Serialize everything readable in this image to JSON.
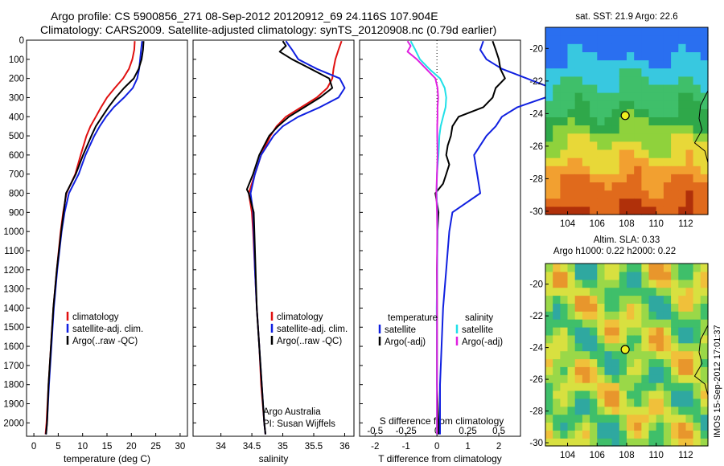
{
  "header": {
    "line1": "Argo profile: CS 5900856_271 08-Sep-2012 20120912_69 24.116S 107.904E",
    "line2": "Climatology: CARS2009. Satellite-adjusted climatology: synTS_20120908.nc (0.79d earlier)"
  },
  "footer_stamp": "IMOS 15-Sep-2012 17:01:37",
  "colors": {
    "climatology": "#e01010",
    "satellite": "#1020e0",
    "argo": "#000000",
    "sat_diff": "#20e0e8",
    "argo_diff": "#e020e0"
  },
  "chart_data": [
    {
      "type": "line",
      "xlabel": "temperature (deg C)",
      "ylabel": "",
      "xlim": [
        -1.5,
        31.5
      ],
      "ylim": [
        0,
        2070
      ],
      "xticks": [
        0,
        5,
        10,
        15,
        20,
        25,
        30
      ],
      "yticks": [
        0,
        100,
        200,
        300,
        400,
        500,
        600,
        700,
        800,
        900,
        1000,
        1100,
        1200,
        1300,
        1400,
        1500,
        1600,
        1700,
        1800,
        1900,
        2000
      ],
      "legend": [
        "climatology",
        "satellite-adj. clim.",
        "Argo(..raw -QC)"
      ],
      "legend_position": "lower-right",
      "series": [
        {
          "name": "climatology",
          "color": "#e01010",
          "depth": [
            5,
            50,
            100,
            150,
            200,
            250,
            300,
            350,
            400,
            450,
            500,
            600,
            700,
            800,
            900,
            1000,
            1200,
            1400,
            1600,
            1800,
            2000,
            2060
          ],
          "values": [
            20.7,
            20.6,
            20.2,
            19.5,
            18.3,
            16.6,
            15.0,
            13.8,
            12.7,
            11.6,
            10.8,
            9.6,
            8.5,
            6.7,
            6.0,
            5.5,
            4.7,
            4.0,
            3.5,
            3.0,
            2.6,
            2.4
          ]
        },
        {
          "name": "satellite-adj. clim.",
          "color": "#1020e0",
          "depth": [
            5,
            50,
            100,
            150,
            200,
            250,
            300,
            350,
            400,
            450,
            500,
            600,
            700,
            800,
            900,
            1000,
            1200,
            1400,
            1600,
            1800,
            2000,
            2060
          ],
          "values": [
            22.2,
            22.0,
            21.8,
            21.6,
            21.2,
            20.3,
            18.5,
            16.4,
            14.8,
            13.5,
            12.4,
            10.6,
            9.2,
            7.2,
            6.3,
            5.7,
            4.8,
            4.1,
            3.6,
            3.1,
            2.7,
            2.5
          ]
        },
        {
          "name": "Argo(..raw -QC)",
          "color": "#000000",
          "depth": [
            5,
            50,
            100,
            150,
            200,
            250,
            300,
            350,
            400,
            450,
            500,
            600,
            700,
            780,
            800,
            900,
            1000,
            1200,
            1400,
            1600,
            1800,
            2000,
            2060
          ],
          "values": [
            22.5,
            22.4,
            22.1,
            21.5,
            20.5,
            18.5,
            16.8,
            15.3,
            14.0,
            12.7,
            11.8,
            10.1,
            8.6,
            7.0,
            6.6,
            6.1,
            5.6,
            4.7,
            4.0,
            3.5,
            3.0,
            2.7,
            2.5
          ]
        }
      ]
    },
    {
      "type": "line",
      "xlabel": "salinity",
      "xlim": [
        33.55,
        36.15
      ],
      "ylim": [
        0,
        2070
      ],
      "xticks": [
        34,
        34.5,
        35,
        35.5,
        36
      ],
      "legend": [
        "climatology",
        "satellite-adj. clim.",
        "Argo(..raw -QC)"
      ],
      "legend_position": "lower-right",
      "annotation": [
        "Argo Australia",
        "PI: Susan Wijffels"
      ],
      "series": [
        {
          "name": "climatology",
          "color": "#e01010",
          "depth": [
            5,
            50,
            100,
            150,
            200,
            250,
            300,
            350,
            400,
            450,
            500,
            600,
            700,
            800,
            900,
            1000,
            1200,
            1400,
            1600,
            1800,
            2000,
            2060
          ],
          "values": [
            35.95,
            35.9,
            35.85,
            35.82,
            35.8,
            35.72,
            35.55,
            35.3,
            35.05,
            34.9,
            34.8,
            34.65,
            34.55,
            34.45,
            34.5,
            34.52,
            34.55,
            34.58,
            34.62,
            34.65,
            34.7,
            34.72
          ]
        },
        {
          "name": "satellite-adj. clim.",
          "color": "#1020e0",
          "depth": [
            5,
            50,
            100,
            150,
            200,
            250,
            300,
            350,
            400,
            450,
            500,
            600,
            700,
            800,
            900,
            1000,
            1200,
            1400,
            1600,
            1800,
            2000,
            2060
          ],
          "values": [
            35.05,
            35.15,
            35.25,
            35.55,
            35.92,
            36.0,
            35.9,
            35.6,
            35.25,
            35.0,
            34.85,
            34.65,
            34.55,
            34.48,
            34.52,
            34.53,
            34.55,
            34.58,
            34.62,
            34.66,
            34.7,
            34.72
          ]
        },
        {
          "name": "Argo(..raw -QC)",
          "color": "#000000",
          "depth": [
            5,
            30,
            60,
            100,
            150,
            200,
            250,
            300,
            350,
            400,
            450,
            500,
            600,
            700,
            780,
            800,
            900,
            1000,
            1200,
            1400,
            1600,
            1800,
            2000,
            2060
          ],
          "values": [
            35.0,
            35.05,
            34.95,
            35.15,
            35.45,
            35.75,
            35.8,
            35.6,
            35.35,
            35.1,
            34.92,
            34.78,
            34.62,
            34.52,
            34.42,
            34.45,
            34.53,
            34.54,
            34.56,
            34.58,
            34.62,
            34.66,
            34.7,
            34.72
          ]
        }
      ]
    },
    {
      "type": "line",
      "xlabel": "T difference from climatology",
      "x2label": "S difference from climatology",
      "xlim": [
        -2.5,
        2.7
      ],
      "ylim": [
        0,
        2070
      ],
      "xticks": [
        -2,
        -1,
        0,
        1,
        2
      ],
      "x2ticks": [
        -0.5,
        -0.25,
        0,
        0.25,
        0.5
      ],
      "x2tick_labels": [
        "-0.5",
        "-0.25",
        "0",
        "0.25",
        "0.5"
      ],
      "legend_groups": [
        {
          "title": "temperature",
          "items": [
            "satellite",
            "Argo(-adj)"
          ]
        },
        {
          "title": "salinity",
          "items": [
            "satellite",
            "Argo(-adj)"
          ]
        }
      ],
      "series": [
        {
          "name": "temperature satellite",
          "color": "#1020e0",
          "depth": [
            5,
            50,
            100,
            150,
            200,
            250,
            300,
            350,
            400,
            450,
            500,
            600,
            700,
            800,
            900,
            1000,
            1200,
            1400,
            1600,
            1800,
            2000,
            2060
          ],
          "values": [
            1.5,
            1.4,
            1.6,
            2.1,
            2.9,
            3.7,
            3.5,
            2.6,
            2.1,
            1.9,
            1.6,
            1.2,
            1.3,
            1.4,
            0.5,
            0.4,
            0.3,
            0.2,
            0.15,
            0.1,
            0.1,
            0.1
          ]
        },
        {
          "name": "temperature Argo(-adj)",
          "color": "#000000",
          "depth": [
            5,
            50,
            100,
            150,
            200,
            250,
            300,
            350,
            400,
            450,
            500,
            550,
            600,
            650,
            700,
            750,
            800,
            850,
            900,
            1000,
            1200,
            1400,
            1600,
            1800,
            2000,
            2060
          ],
          "values": [
            1.8,
            1.9,
            2.0,
            2.05,
            2.2,
            1.9,
            1.8,
            1.5,
            0.7,
            0.5,
            0.45,
            0.35,
            0.3,
            0.4,
            0.3,
            0.2,
            -0.05,
            0.0,
            0.05,
            0.02,
            0.0,
            0.0,
            0.0,
            0.0,
            0.05,
            0.05
          ]
        },
        {
          "name": "salinity satellite",
          "color": "#20e0e8",
          "depth": [
            5,
            50,
            100,
            150,
            200,
            250,
            300,
            350,
            400,
            450,
            500,
            600,
            700,
            800,
            900,
            1000,
            1200,
            1400,
            1600,
            1800,
            2000,
            2060
          ],
          "values": [
            -0.85,
            -0.7,
            -0.55,
            -0.25,
            0.1,
            0.25,
            0.3,
            0.28,
            0.2,
            0.12,
            0.08,
            0.05,
            0.0,
            -0.01,
            0.01,
            0.02,
            0.01,
            -0.01,
            0.0,
            0.0,
            0.0,
            0.0
          ]
        },
        {
          "name": "salinity Argo(-adj)",
          "color": "#e020e0",
          "depth": [
            5,
            30,
            60,
            100,
            150,
            200,
            250,
            300,
            350,
            400,
            450,
            500,
            600,
            700,
            800,
            900,
            1000,
            1200,
            1400,
            1600,
            1800,
            2000,
            2060
          ],
          "values": [
            -0.95,
            -0.85,
            -0.95,
            -0.65,
            -0.35,
            -0.05,
            0.02,
            0.04,
            0.02,
            0.02,
            0.01,
            0.01,
            0.02,
            0.0,
            -0.02,
            0.0,
            0.01,
            0.0,
            0.0,
            0.0,
            0.0,
            0.0,
            0.0
          ]
        }
      ]
    },
    {
      "type": "heatmap",
      "title": "sat. SST: 21.9 Argo: 22.6",
      "xlim": [
        102.5,
        113.5
      ],
      "ylim": [
        -30.2,
        -18.7
      ],
      "xticks": [
        104,
        106,
        108,
        110,
        112
      ],
      "yticks": [
        -20,
        -22,
        -24,
        -26,
        -28,
        -30
      ],
      "marker": {
        "lon": 107.9,
        "lat": -24.12
      }
    },
    {
      "type": "heatmap",
      "title_lines": [
        "Altim. SLA: 0.33",
        "Argo h1000: 0.22 h2000: 0.22"
      ],
      "xlim": [
        102.5,
        113.5
      ],
      "ylim": [
        -30.2,
        -18.7
      ],
      "xticks": [
        104,
        106,
        108,
        110,
        112
      ],
      "yticks": [
        -20,
        -22,
        -24,
        -26,
        -28,
        -30
      ],
      "marker": {
        "lon": 107.9,
        "lat": -24.12
      }
    }
  ]
}
